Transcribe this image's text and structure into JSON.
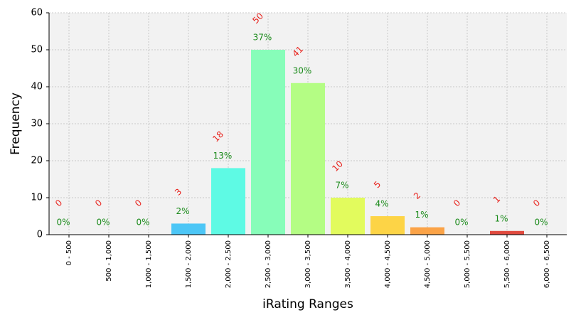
{
  "chart_data": {
    "type": "bar",
    "x_label": "iRating Ranges",
    "y_label": "Frequency",
    "categories": [
      "0 - 500",
      "500 - 1,000",
      "1,000 - 1,500",
      "1,500 - 2,000",
      "2,000 - 2,500",
      "2,500 - 3,000",
      "3,000 - 3,500",
      "3,500 - 4,000",
      "4,000 - 4,500",
      "4,500 - 5,000",
      "5,000 - 5,500",
      "5,500 - 6,000",
      "6,000 - 6,500"
    ],
    "values": [
      0,
      0,
      0,
      3,
      18,
      50,
      41,
      10,
      5,
      2,
      0,
      1,
      0
    ],
    "percent_labels": [
      "0%",
      "0%",
      "0%",
      "2%",
      "13%",
      "37%",
      "30%",
      "7%",
      "4%",
      "1%",
      "0%",
      "1%",
      "0%"
    ],
    "colors": [
      "#3a3fb0",
      "#3a6fe0",
      "#3a9ff0",
      "#4cc6f6",
      "#5efae4",
      "#87fdb9",
      "#b4fd84",
      "#e2fb5d",
      "#fdd446",
      "#fba347",
      "#f27a3e",
      "#e04a3e",
      "#c0302e"
    ],
    "ylim": [
      0,
      60
    ],
    "yticks": [
      0,
      10,
      20,
      30,
      40,
      50,
      60
    ],
    "grid": true
  }
}
